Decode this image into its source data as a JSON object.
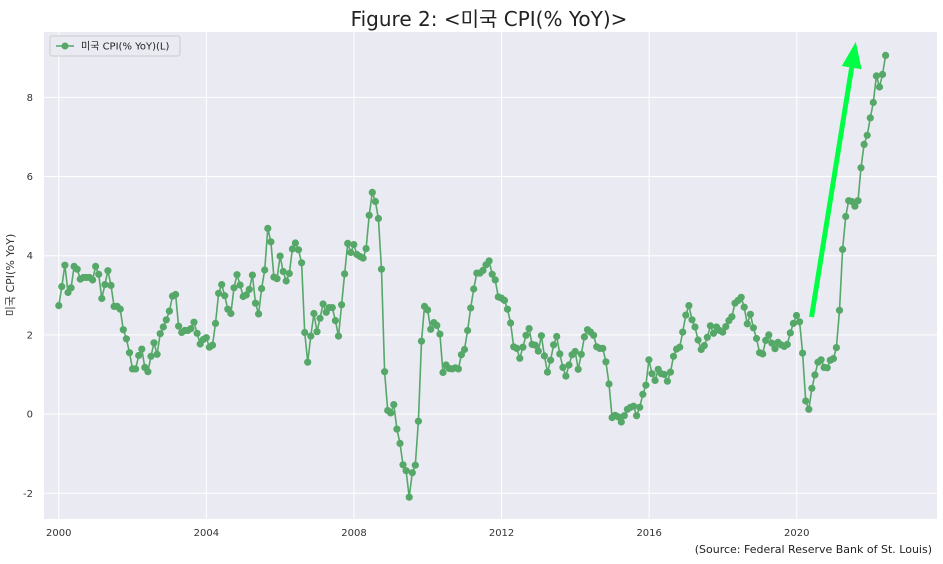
{
  "colors": {
    "series": "#55a868",
    "arrow": "#00ff44",
    "plot_bg": "#eaeaf2",
    "grid": "#ffffff"
  },
  "chart_data": {
    "type": "line",
    "title": "Figure 2: <미국 CPI(% YoY)>",
    "ylabel": "미국 CPI(% YoY)",
    "xlabel": "",
    "source": "(Source: Federal Reserve Bank of St. Louis)",
    "legend": {
      "label": "미국 CPI(% YoY)(L)",
      "position": "top-left"
    },
    "xlim": [
      1999.6,
      2023.8
    ],
    "ylim": [
      -2.65,
      9.65
    ],
    "xticks": [
      2000,
      2004,
      2008,
      2012,
      2016,
      2020
    ],
    "xtick_labels": [
      "2000",
      "2004",
      "2008",
      "2012",
      "2016",
      "2020"
    ],
    "yticks": [
      -2,
      0,
      2,
      4,
      6,
      8
    ],
    "ytick_labels": [
      "-2",
      "0",
      "2",
      "4",
      "6",
      "8"
    ],
    "grid": true,
    "annotation": {
      "type": "arrow",
      "color": "#00ff44",
      "from": [
        2020.4,
        2.45
      ],
      "to": [
        2021.6,
        9.4
      ]
    },
    "series": [
      {
        "x_start": 2000.0,
        "step": 0.0833,
        "values": [
          2.74,
          3.22,
          3.76,
          3.07,
          3.19,
          3.73,
          3.66,
          3.41,
          3.45,
          3.45,
          3.45,
          3.39,
          3.73,
          3.53,
          2.92,
          3.27,
          3.62,
          3.25,
          2.72,
          2.72,
          2.65,
          2.13,
          1.9,
          1.55,
          1.14,
          1.14,
          1.48,
          1.64,
          1.18,
          1.07,
          1.46,
          1.8,
          1.51,
          2.03,
          2.2,
          2.38,
          2.6,
          2.98,
          3.02,
          2.22,
          2.06,
          2.11,
          2.11,
          2.16,
          2.32,
          2.04,
          1.77,
          1.88,
          1.93,
          1.69,
          1.74,
          2.29,
          3.05,
          3.27,
          2.99,
          2.65,
          2.54,
          3.19,
          3.52,
          3.26,
          2.97,
          3.01,
          3.15,
          3.51,
          2.8,
          2.53,
          3.17,
          3.64,
          4.69,
          4.35,
          3.46,
          3.42,
          3.99,
          3.6,
          3.36,
          3.55,
          4.17,
          4.32,
          4.15,
          3.82,
          2.06,
          1.31,
          1.97,
          2.54,
          2.08,
          2.42,
          2.78,
          2.57,
          2.69,
          2.69,
          2.36,
          1.97,
          2.76,
          3.54,
          4.31,
          4.08,
          4.28,
          4.03,
          3.98,
          3.94,
          4.18,
          5.02,
          5.6,
          5.37,
          4.94,
          3.66,
          1.07,
          0.09,
          0.03,
          0.24,
          -0.38,
          -0.74,
          -1.28,
          -1.43,
          -2.1,
          -1.48,
          -1.29,
          -0.18,
          1.84,
          2.72,
          2.63,
          2.14,
          2.31,
          2.24,
          2.02,
          1.05,
          1.24,
          1.15,
          1.14,
          1.17,
          1.14,
          1.5,
          1.63,
          2.11,
          2.68,
          3.16,
          3.56,
          3.56,
          3.63,
          3.77,
          3.87,
          3.53,
          3.39,
          2.96,
          2.93,
          2.87,
          2.65,
          2.3,
          1.7,
          1.66,
          1.41,
          1.69,
          1.99,
          2.16,
          1.76,
          1.74,
          1.59,
          1.98,
          1.47,
          1.06,
          1.36,
          1.75,
          1.96,
          1.52,
          1.18,
          0.96,
          1.24,
          1.5,
          1.58,
          1.13,
          1.51,
          1.95,
          2.13,
          2.07,
          1.99,
          1.7,
          1.66,
          1.66,
          1.32,
          0.76,
          -0.09,
          -0.03,
          -0.07,
          -0.2,
          -0.04,
          0.12,
          0.17,
          0.2,
          -0.04,
          0.17,
          0.5,
          0.73,
          1.37,
          1.02,
          0.85,
          1.13,
          1.02,
          1.0,
          0.83,
          1.06,
          1.46,
          1.64,
          1.69,
          2.07,
          2.5,
          2.74,
          2.38,
          2.2,
          1.87,
          1.63,
          1.73,
          1.94,
          2.23,
          2.04,
          2.2,
          2.11,
          2.07,
          2.21,
          2.36,
          2.46,
          2.8,
          2.87,
          2.95,
          2.7,
          2.28,
          2.52,
          2.18,
          1.91,
          1.55,
          1.52,
          1.86,
          2.0,
          1.79,
          1.65,
          1.81,
          1.75,
          1.71,
          1.76,
          2.05,
          2.29,
          2.49,
          2.33,
          1.54,
          0.33,
          0.12,
          0.65,
          0.99,
          1.31,
          1.37,
          1.18,
          1.17,
          1.36,
          1.4,
          1.68,
          2.62,
          4.16,
          4.99,
          5.39,
          5.37,
          5.25,
          5.39,
          6.22,
          6.81,
          7.04,
          7.48,
          7.87,
          8.54,
          8.26,
          8.58,
          9.06
        ]
      }
    ]
  }
}
